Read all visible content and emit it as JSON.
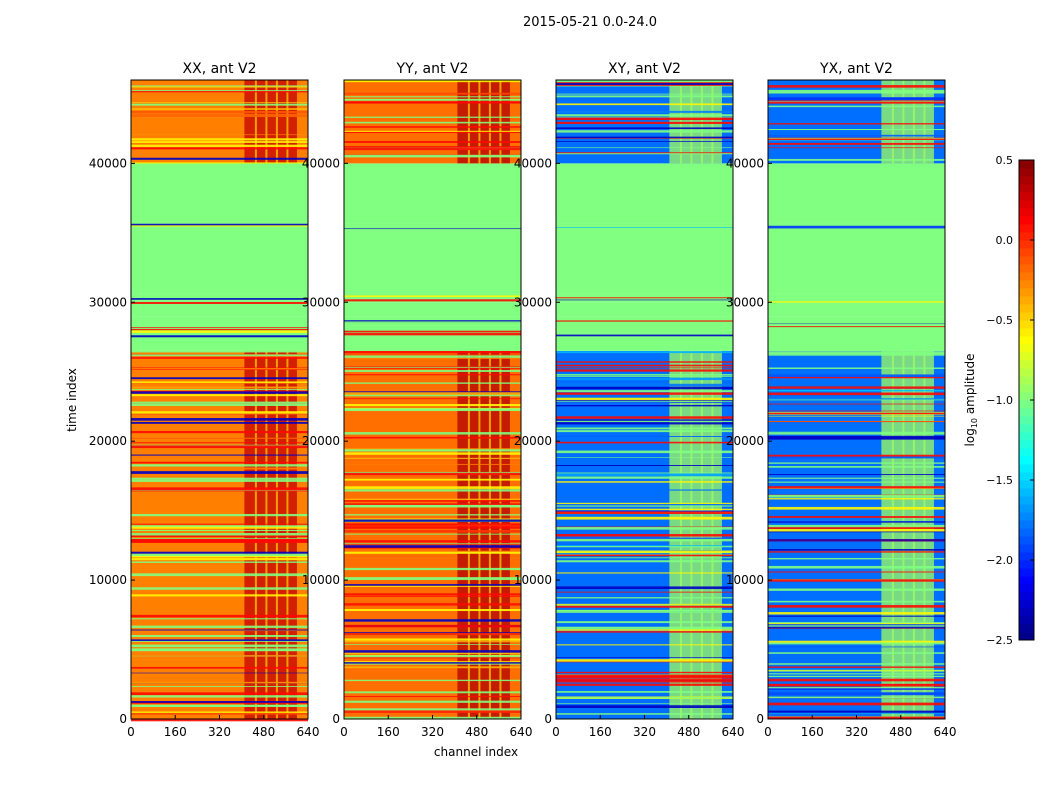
{
  "chart_data": {
    "type": "heatmap",
    "suptitle": "2015-05-21 0.0-24.0",
    "xlabel": "channel index",
    "ylabel": "time index",
    "xlim": [
      0,
      640
    ],
    "ylim": [
      0,
      46000
    ],
    "xticks": [
      "0",
      "160",
      "320",
      "480",
      "640"
    ],
    "yticks": [
      "0",
      "10000",
      "20000",
      "30000",
      "40000"
    ],
    "colorbar": {
      "label": "log10 amplitude",
      "label_main": "log",
      "label_sub": "10",
      "label_rest": " amplitude",
      "range": [
        -2.5,
        0.5
      ],
      "ticks": [
        "0.5",
        "0.0",
        "−0.5",
        "−1.0",
        "−1.5",
        "−2.0",
        "−2.5"
      ],
      "colormap": "jet"
    },
    "panels": [
      {
        "title": "XX, ant V2",
        "base": -0.25,
        "rfi": 0.3
      },
      {
        "title": "YY, ant V2",
        "base": -0.2,
        "rfi": 0.35
      },
      {
        "title": "XY, ant V2",
        "base": -1.8,
        "rfi": -0.9
      },
      {
        "title": "YX, ant V2",
        "base": -1.8,
        "rfi": -0.9
      }
    ],
    "rfi_channels": [
      410,
      600
    ],
    "time_segments": [
      {
        "start": 0,
        "end": 26500,
        "state": "data"
      },
      {
        "start": 26500,
        "end": 27600,
        "state": "flagged"
      },
      {
        "start": 27600,
        "end": 29000,
        "state": "mixed"
      },
      {
        "start": 29000,
        "end": 30000,
        "state": "flagged"
      },
      {
        "start": 30000,
        "end": 30600,
        "state": "mixed"
      },
      {
        "start": 30600,
        "end": 35200,
        "state": "flagged"
      },
      {
        "start": 35200,
        "end": 35700,
        "state": "mixed"
      },
      {
        "start": 35700,
        "end": 40000,
        "state": "flagged"
      },
      {
        "start": 40000,
        "end": 46000,
        "state": "data"
      }
    ],
    "flagged_value": -1.0
  }
}
